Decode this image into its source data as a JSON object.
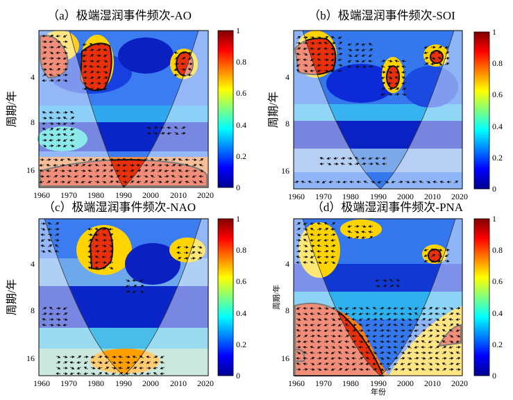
{
  "colorbar_ticks": [
    "0",
    "0.2",
    "0.4",
    "0.6",
    "0.8",
    "1"
  ],
  "chart_data": [
    {
      "type": "heatmap",
      "title": "（a）极端湿润事件频次-AO",
      "ylabel": "周期/年",
      "xlabel": "",
      "x_ticks": [
        "1960",
        "1970",
        "1980",
        "1990",
        "2000",
        "2010",
        "2020"
      ],
      "y_ticks": [
        "4",
        "8",
        "16"
      ],
      "xlim": [
        1959,
        2021
      ],
      "ylim_period": [
        2,
        20
      ],
      "colorbar_range": [
        0,
        1
      ],
      "significant_regions": [
        {
          "x_center": 1963,
          "period_center": 3.0
        },
        {
          "x_center": 1978,
          "period_center": 3.0
        },
        {
          "x_center": 2011,
          "period_center": 3.0
        },
        {
          "x_center": 1988,
          "period_center": 16.5
        }
      ]
    },
    {
      "type": "heatmap",
      "title": "（b）极端湿润事件频次-SOI",
      "ylabel": "周期/年",
      "xlabel": "",
      "x_ticks": [
        "1960",
        "1970",
        "1980",
        "1990",
        "2000",
        "2010",
        "2020"
      ],
      "y_ticks": [
        "4",
        "8",
        "16"
      ],
      "xlim": [
        1959,
        2021
      ],
      "ylim_period": [
        2,
        20
      ],
      "colorbar_range": [
        0,
        1
      ],
      "significant_regions": [
        {
          "x_center": 1965,
          "period_center": 2.8
        },
        {
          "x_center": 1995,
          "period_center": 3.8
        },
        {
          "x_center": 2011,
          "period_center": 2.6
        }
      ]
    },
    {
      "type": "heatmap",
      "title": "（c）极端湿润事件频次-NAO",
      "ylabel": "周期/年",
      "xlabel": "",
      "x_ticks": [
        "1960",
        "1970",
        "1980",
        "1990",
        "2000",
        "2010",
        "2020"
      ],
      "y_ticks": [
        "4",
        "8",
        "16"
      ],
      "xlim": [
        1959,
        2021
      ],
      "ylim_period": [
        2,
        20
      ],
      "colorbar_range": [
        0,
        1
      ],
      "significant_regions": [
        {
          "x_center": 1983,
          "period_center": 3.3
        }
      ]
    },
    {
      "type": "heatmap",
      "title": "（d）极端湿润事件频次-PNA",
      "ylabel": "周期/年",
      "xlabel": "年份",
      "x_ticks": [
        "1960",
        "1970",
        "1980",
        "1990",
        "2000",
        "2010",
        "2020"
      ],
      "y_ticks": [
        "4",
        "8",
        "16"
      ],
      "xlim": [
        1959,
        2021
      ],
      "ylim_period": [
        2,
        20
      ],
      "colorbar_range": [
        0,
        1
      ],
      "significant_regions": [
        {
          "x_center": 2009,
          "period_center": 3.6
        },
        {
          "x_center": 1980,
          "period_center": 12.0
        }
      ]
    }
  ]
}
